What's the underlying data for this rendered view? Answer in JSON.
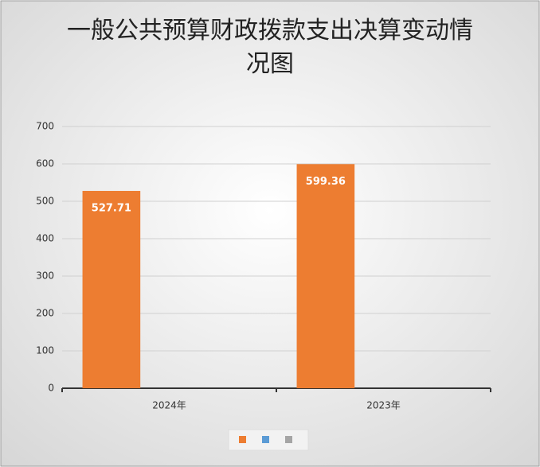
{
  "chart_data": {
    "type": "bar",
    "title": "一般公共预算财政拨款支出决算变动情况图",
    "categories": [
      "2024年",
      "2023年"
    ],
    "series": [
      {
        "color": "#ed7d31",
        "values": [
          527.71,
          599.36
        ]
      },
      {
        "color": "#5b9bd5",
        "values": [
          null,
          null
        ]
      },
      {
        "color": "#a5a5a5",
        "values": [
          null,
          null
        ]
      }
    ],
    "ylim": [
      0,
      700
    ],
    "yticks": [
      0,
      100,
      200,
      300,
      400,
      500,
      600,
      700
    ],
    "grid": true,
    "legend": "bottom"
  }
}
